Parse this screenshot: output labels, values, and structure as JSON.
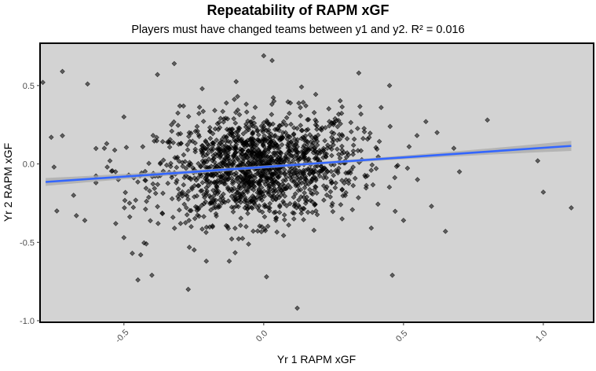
{
  "chart_data": {
    "type": "scatter",
    "title": "Repeatability of RAPM xGF",
    "subtitle": "Players must have changed teams between y1 and y2. R² = 0.016",
    "xlabel": "Yr 1 RAPM xGF",
    "ylabel": "Yr 2 RAPM xGF",
    "xlim": [
      -0.8,
      1.18
    ],
    "ylim": [
      -1.01,
      0.77
    ],
    "x_ticks": [
      -0.5,
      0.0,
      0.5,
      1.0
    ],
    "x_tick_labels": [
      "-0.5",
      "0.0",
      "0.5",
      "1.0"
    ],
    "y_ticks": [
      -1.0,
      -0.5,
      0.0,
      0.5
    ],
    "y_tick_labels": [
      "-1.0",
      "-0.5",
      "0.0",
      "0.5"
    ],
    "grid": false,
    "background": "#d3d3d3",
    "point_color": "#000000",
    "fit_line": {
      "method": "linear",
      "color": "#3366ff",
      "band_color": "#a9a9a9",
      "x_range": [
        -0.78,
        1.1
      ],
      "start": -0.115,
      "end": 0.115,
      "se_left": 0.025,
      "se_mid": 0.009,
      "se_right": 0.032
    },
    "outliers": [
      [
        -0.79,
        0.52
      ],
      [
        -0.72,
        0.59
      ],
      [
        -0.63,
        0.51
      ],
      [
        -0.75,
        -0.02
      ],
      [
        -0.74,
        -0.3
      ],
      [
        -0.72,
        0.18
      ],
      [
        -0.76,
        0.17
      ],
      [
        -0.68,
        -0.2
      ],
      [
        -0.67,
        -0.33
      ],
      [
        -0.64,
        -0.36
      ],
      [
        -0.6,
        -0.12
      ],
      [
        -0.57,
        0.1
      ],
      [
        -0.55,
        0.02
      ],
      [
        -0.53,
        -0.05
      ],
      [
        -0.52,
        -0.1
      ],
      [
        -0.5,
        -0.47
      ],
      [
        -0.48,
        -0.25
      ],
      [
        -0.47,
        -0.57
      ],
      [
        -0.45,
        -0.74
      ],
      [
        -0.42,
        -0.51
      ],
      [
        -0.4,
        -0.71
      ],
      [
        -0.38,
        0.57
      ],
      [
        -0.32,
        0.64
      ],
      [
        -0.3,
        0.37
      ],
      [
        -0.27,
        -0.8
      ],
      [
        -0.33,
        0.25
      ],
      [
        0.0,
        0.69
      ],
      [
        0.03,
        0.66
      ],
      [
        0.01,
        -0.72
      ],
      [
        0.12,
        -0.92
      ],
      [
        0.34,
        0.58
      ],
      [
        0.46,
        -0.71
      ],
      [
        0.8,
        0.28
      ],
      [
        0.98,
        0.02
      ],
      [
        1.0,
        -0.18
      ],
      [
        1.1,
        -0.28
      ],
      [
        0.65,
        -0.43
      ],
      [
        0.6,
        -0.27
      ],
      [
        0.58,
        0.27
      ],
      [
        0.55,
        -0.1
      ],
      [
        0.52,
        0.11
      ],
      [
        0.5,
        -0.36
      ],
      [
        0.62,
        0.2
      ],
      [
        0.68,
        0.1
      ],
      [
        0.7,
        -0.05
      ],
      [
        0.45,
        0.5
      ],
      [
        0.42,
        0.36
      ],
      [
        -0.5,
        0.3
      ],
      [
        -0.44,
        -0.58
      ],
      [
        -0.22,
        0.48
      ]
    ],
    "cloud": {
      "n_points": 1500,
      "x_mean": -0.02,
      "x_sd": 0.18,
      "y_mean": -0.02,
      "y_sd": 0.17
    }
  }
}
